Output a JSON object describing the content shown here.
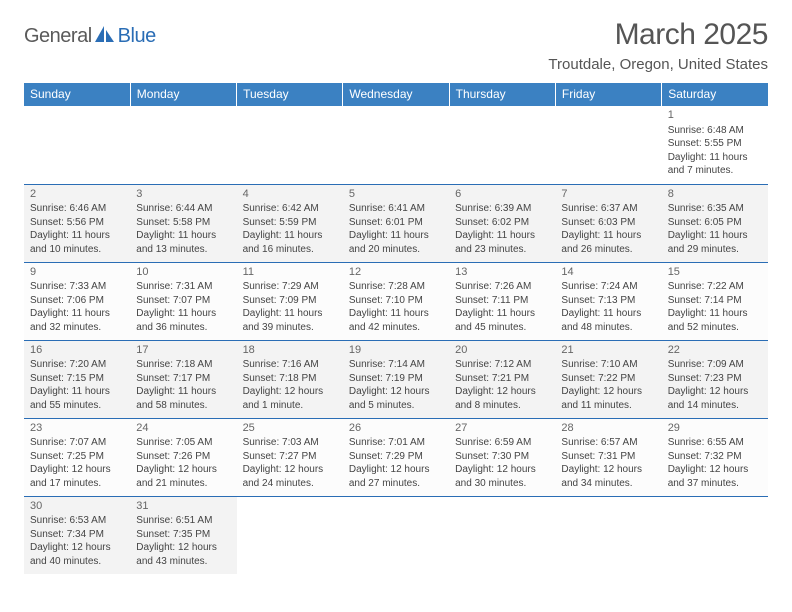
{
  "logo": {
    "part1": "General",
    "part2": "Blue",
    "mark_color": "#2a6db5"
  },
  "title": "March 2025",
  "location": "Troutdale, Oregon, United States",
  "day_headers": [
    "Sunday",
    "Monday",
    "Tuesday",
    "Wednesday",
    "Thursday",
    "Friday",
    "Saturday"
  ],
  "header_bg": "#3b81c2",
  "header_fg": "#ffffff",
  "rule_color": "#2a6db5",
  "weeks": [
    [
      {
        "n": "",
        "l": [
          "",
          "",
          "",
          ""
        ]
      },
      {
        "n": "",
        "l": [
          "",
          "",
          "",
          ""
        ]
      },
      {
        "n": "",
        "l": [
          "",
          "",
          "",
          ""
        ]
      },
      {
        "n": "",
        "l": [
          "",
          "",
          "",
          ""
        ]
      },
      {
        "n": "",
        "l": [
          "",
          "",
          "",
          ""
        ]
      },
      {
        "n": "",
        "l": [
          "",
          "",
          "",
          ""
        ]
      },
      {
        "n": "1",
        "l": [
          "Sunrise: 6:48 AM",
          "Sunset: 5:55 PM",
          "Daylight: 11 hours",
          "and 7 minutes."
        ]
      }
    ],
    [
      {
        "n": "2",
        "l": [
          "Sunrise: 6:46 AM",
          "Sunset: 5:56 PM",
          "Daylight: 11 hours",
          "and 10 minutes."
        ]
      },
      {
        "n": "3",
        "l": [
          "Sunrise: 6:44 AM",
          "Sunset: 5:58 PM",
          "Daylight: 11 hours",
          "and 13 minutes."
        ]
      },
      {
        "n": "4",
        "l": [
          "Sunrise: 6:42 AM",
          "Sunset: 5:59 PM",
          "Daylight: 11 hours",
          "and 16 minutes."
        ]
      },
      {
        "n": "5",
        "l": [
          "Sunrise: 6:41 AM",
          "Sunset: 6:01 PM",
          "Daylight: 11 hours",
          "and 20 minutes."
        ]
      },
      {
        "n": "6",
        "l": [
          "Sunrise: 6:39 AM",
          "Sunset: 6:02 PM",
          "Daylight: 11 hours",
          "and 23 minutes."
        ]
      },
      {
        "n": "7",
        "l": [
          "Sunrise: 6:37 AM",
          "Sunset: 6:03 PM",
          "Daylight: 11 hours",
          "and 26 minutes."
        ]
      },
      {
        "n": "8",
        "l": [
          "Sunrise: 6:35 AM",
          "Sunset: 6:05 PM",
          "Daylight: 11 hours",
          "and 29 minutes."
        ]
      }
    ],
    [
      {
        "n": "9",
        "l": [
          "Sunrise: 7:33 AM",
          "Sunset: 7:06 PM",
          "Daylight: 11 hours",
          "and 32 minutes."
        ]
      },
      {
        "n": "10",
        "l": [
          "Sunrise: 7:31 AM",
          "Sunset: 7:07 PM",
          "Daylight: 11 hours",
          "and 36 minutes."
        ]
      },
      {
        "n": "11",
        "l": [
          "Sunrise: 7:29 AM",
          "Sunset: 7:09 PM",
          "Daylight: 11 hours",
          "and 39 minutes."
        ]
      },
      {
        "n": "12",
        "l": [
          "Sunrise: 7:28 AM",
          "Sunset: 7:10 PM",
          "Daylight: 11 hours",
          "and 42 minutes."
        ]
      },
      {
        "n": "13",
        "l": [
          "Sunrise: 7:26 AM",
          "Sunset: 7:11 PM",
          "Daylight: 11 hours",
          "and 45 minutes."
        ]
      },
      {
        "n": "14",
        "l": [
          "Sunrise: 7:24 AM",
          "Sunset: 7:13 PM",
          "Daylight: 11 hours",
          "and 48 minutes."
        ]
      },
      {
        "n": "15",
        "l": [
          "Sunrise: 7:22 AM",
          "Sunset: 7:14 PM",
          "Daylight: 11 hours",
          "and 52 minutes."
        ]
      }
    ],
    [
      {
        "n": "16",
        "l": [
          "Sunrise: 7:20 AM",
          "Sunset: 7:15 PM",
          "Daylight: 11 hours",
          "and 55 minutes."
        ]
      },
      {
        "n": "17",
        "l": [
          "Sunrise: 7:18 AM",
          "Sunset: 7:17 PM",
          "Daylight: 11 hours",
          "and 58 minutes."
        ]
      },
      {
        "n": "18",
        "l": [
          "Sunrise: 7:16 AM",
          "Sunset: 7:18 PM",
          "Daylight: 12 hours",
          "and 1 minute."
        ]
      },
      {
        "n": "19",
        "l": [
          "Sunrise: 7:14 AM",
          "Sunset: 7:19 PM",
          "Daylight: 12 hours",
          "and 5 minutes."
        ]
      },
      {
        "n": "20",
        "l": [
          "Sunrise: 7:12 AM",
          "Sunset: 7:21 PM",
          "Daylight: 12 hours",
          "and 8 minutes."
        ]
      },
      {
        "n": "21",
        "l": [
          "Sunrise: 7:10 AM",
          "Sunset: 7:22 PM",
          "Daylight: 12 hours",
          "and 11 minutes."
        ]
      },
      {
        "n": "22",
        "l": [
          "Sunrise: 7:09 AM",
          "Sunset: 7:23 PM",
          "Daylight: 12 hours",
          "and 14 minutes."
        ]
      }
    ],
    [
      {
        "n": "23",
        "l": [
          "Sunrise: 7:07 AM",
          "Sunset: 7:25 PM",
          "Daylight: 12 hours",
          "and 17 minutes."
        ]
      },
      {
        "n": "24",
        "l": [
          "Sunrise: 7:05 AM",
          "Sunset: 7:26 PM",
          "Daylight: 12 hours",
          "and 21 minutes."
        ]
      },
      {
        "n": "25",
        "l": [
          "Sunrise: 7:03 AM",
          "Sunset: 7:27 PM",
          "Daylight: 12 hours",
          "and 24 minutes."
        ]
      },
      {
        "n": "26",
        "l": [
          "Sunrise: 7:01 AM",
          "Sunset: 7:29 PM",
          "Daylight: 12 hours",
          "and 27 minutes."
        ]
      },
      {
        "n": "27",
        "l": [
          "Sunrise: 6:59 AM",
          "Sunset: 7:30 PM",
          "Daylight: 12 hours",
          "and 30 minutes."
        ]
      },
      {
        "n": "28",
        "l": [
          "Sunrise: 6:57 AM",
          "Sunset: 7:31 PM",
          "Daylight: 12 hours",
          "and 34 minutes."
        ]
      },
      {
        "n": "29",
        "l": [
          "Sunrise: 6:55 AM",
          "Sunset: 7:32 PM",
          "Daylight: 12 hours",
          "and 37 minutes."
        ]
      }
    ],
    [
      {
        "n": "30",
        "l": [
          "Sunrise: 6:53 AM",
          "Sunset: 7:34 PM",
          "Daylight: 12 hours",
          "and 40 minutes."
        ]
      },
      {
        "n": "31",
        "l": [
          "Sunrise: 6:51 AM",
          "Sunset: 7:35 PM",
          "Daylight: 12 hours",
          "and 43 minutes."
        ]
      },
      {
        "n": "",
        "l": [
          "",
          "",
          "",
          ""
        ]
      },
      {
        "n": "",
        "l": [
          "",
          "",
          "",
          ""
        ]
      },
      {
        "n": "",
        "l": [
          "",
          "",
          "",
          ""
        ]
      },
      {
        "n": "",
        "l": [
          "",
          "",
          "",
          ""
        ]
      },
      {
        "n": "",
        "l": [
          "",
          "",
          "",
          ""
        ]
      }
    ]
  ]
}
